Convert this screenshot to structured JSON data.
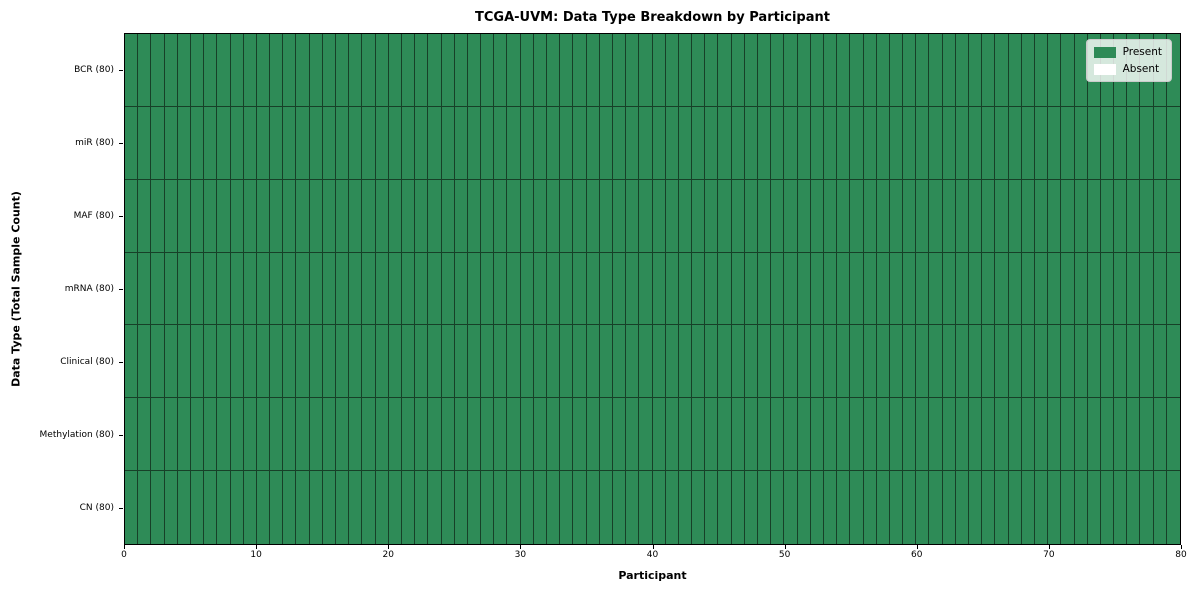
{
  "chart_data": {
    "type": "heatmap",
    "title": "TCGA-UVM: Data Type Breakdown by Participant",
    "xlabel": "Participant",
    "ylabel": "Data Type (Total Sample Count)",
    "x_range": [
      0,
      80
    ],
    "x_ticks": [
      0,
      10,
      20,
      30,
      40,
      50,
      60,
      70,
      80
    ],
    "n_participants": 80,
    "rows": [
      {
        "label": "BCR (80)",
        "data_type": "BCR",
        "total_samples": 80,
        "present_count": 80,
        "absent_count": 0
      },
      {
        "label": "miR (80)",
        "data_type": "miR",
        "total_samples": 80,
        "present_count": 80,
        "absent_count": 0
      },
      {
        "label": "MAF (80)",
        "data_type": "MAF",
        "total_samples": 80,
        "present_count": 80,
        "absent_count": 0
      },
      {
        "label": "mRNA (80)",
        "data_type": "mRNA",
        "total_samples": 80,
        "present_count": 80,
        "absent_count": 0
      },
      {
        "label": "Clinical (80)",
        "data_type": "Clinical",
        "total_samples": 80,
        "present_count": 80,
        "absent_count": 0
      },
      {
        "label": "Methylation (80)",
        "data_type": "Methylation",
        "total_samples": 80,
        "present_count": 80,
        "absent_count": 0
      },
      {
        "label": "CN (80)",
        "data_type": "CN",
        "total_samples": 80,
        "present_count": 80,
        "absent_count": 0
      }
    ],
    "all_present": true,
    "legend": [
      {
        "label": "Present",
        "color": "#2e8b57"
      },
      {
        "label": "Absent",
        "color": "#ffffff"
      }
    ],
    "legend_position": "upper right",
    "colors": {
      "present": "#2e8b57",
      "absent": "#ffffff",
      "cell_border": "rgba(10,25,15,0.65)"
    }
  }
}
